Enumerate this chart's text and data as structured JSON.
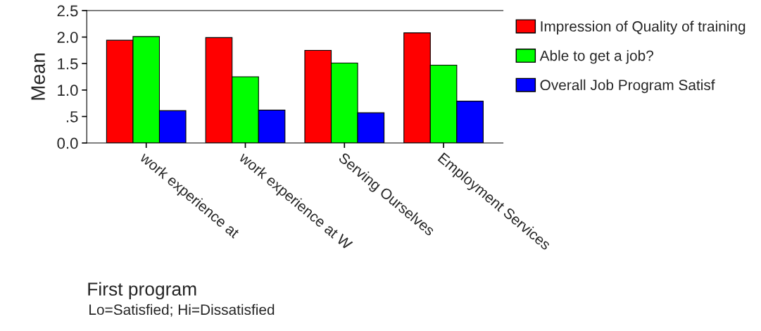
{
  "chart_data": {
    "type": "bar",
    "categories": [
      "work experience at",
      "work experience at W",
      "Serving Ourselves",
      "Employment Services"
    ],
    "series": [
      {
        "name": "Impression of Quality of training",
        "color": "#ff0000",
        "values": [
          1.94,
          1.99,
          1.75,
          2.08
        ]
      },
      {
        "name": "Able to get a job?",
        "color": "#00ff00",
        "values": [
          2.01,
          1.25,
          1.51,
          1.47
        ]
      },
      {
        "name": "Overall Job Program Satisf",
        "color": "#0000ff",
        "values": [
          0.61,
          0.62,
          0.57,
          0.79
        ]
      }
    ],
    "xlabel": "First program",
    "ylabel": "Mean",
    "annotations": [
      "Lo=Satisfied; Hi=Dissatisfied"
    ],
    "ylim": [
      0,
      2.5
    ],
    "yticks": [
      {
        "value": 0,
        "label": "0.0"
      },
      {
        "value": 0.5,
        "label": ".5"
      },
      {
        "value": 1,
        "label": "1.0"
      },
      {
        "value": 1.5,
        "label": "1.5"
      },
      {
        "value": 2,
        "label": "2.0"
      },
      {
        "value": 2.5,
        "label": "2.5"
      }
    ],
    "grid": false,
    "legend": "right"
  }
}
